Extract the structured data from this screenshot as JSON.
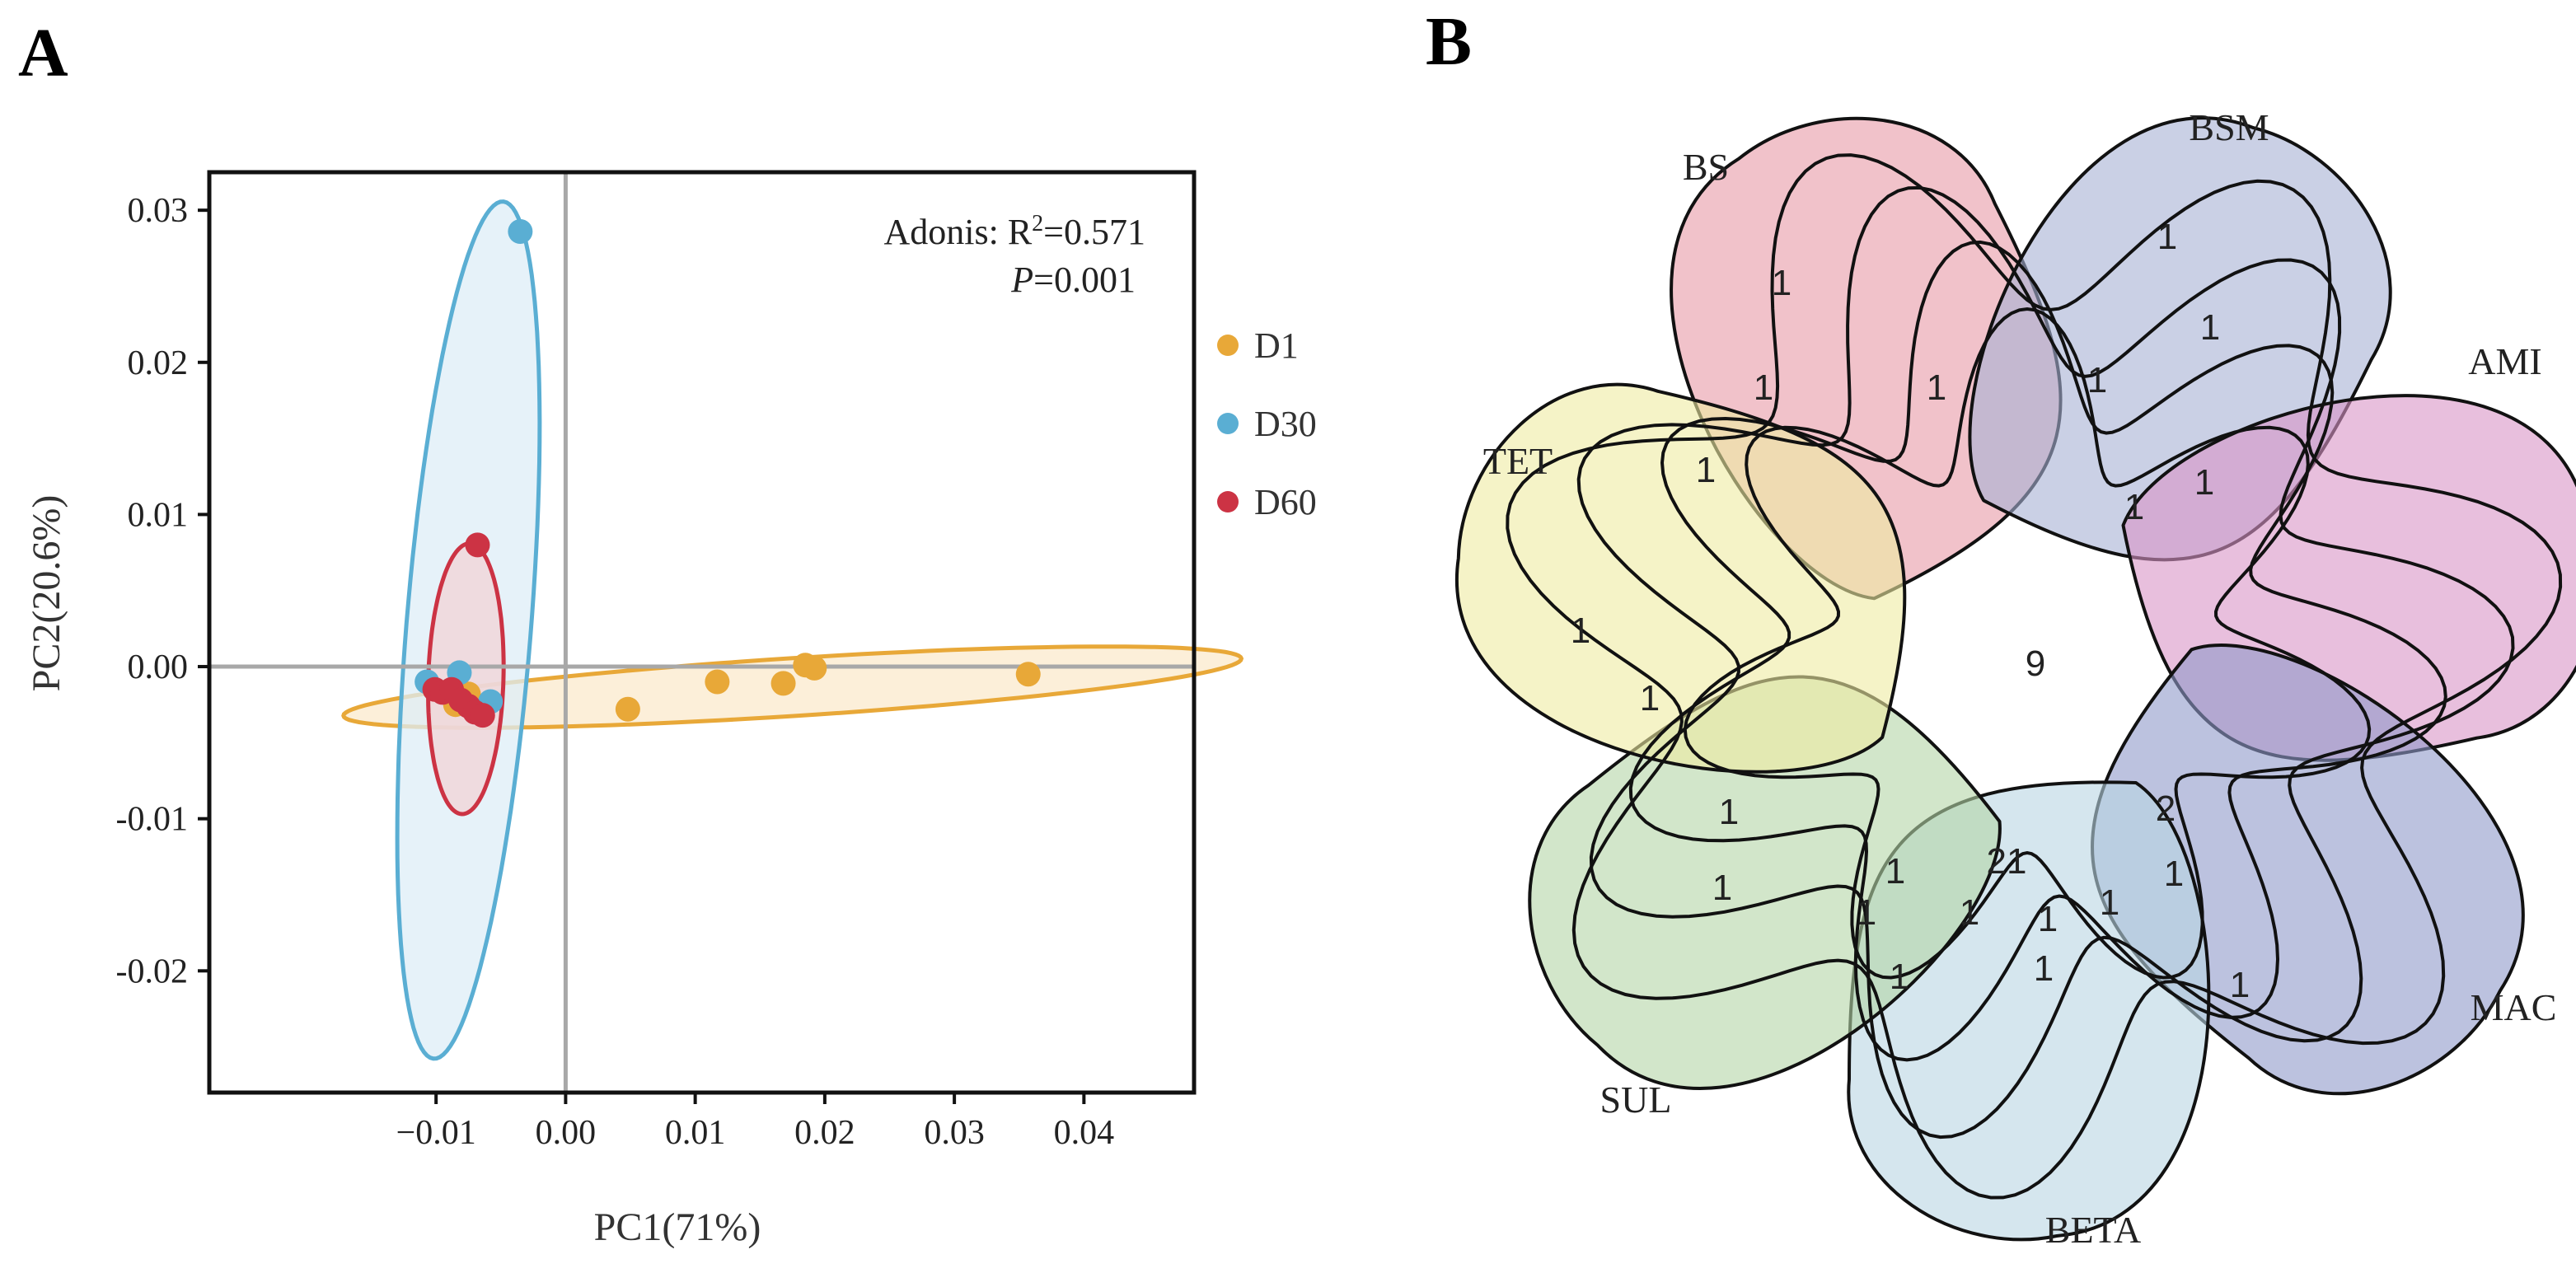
{
  "panels": {
    "a_letter": "A",
    "b_letter": "B"
  },
  "chart_data": [
    {
      "type": "scatter",
      "title": "",
      "xlabel": "PC1(71%)",
      "ylabel": "PC2(20.6%)",
      "xlim": [
        -0.0275,
        0.0485
      ],
      "ylim": [
        -0.028,
        0.0325
      ],
      "xticks": [
        -0.01,
        0.0,
        0.01,
        0.02,
        0.03,
        0.04
      ],
      "xtick_labels": [
        "−0.01",
        "0.00",
        "0.01",
        "0.02",
        "0.03",
        "0.04"
      ],
      "yticks": [
        -0.02,
        -0.01,
        0.0,
        0.01,
        0.02,
        0.03
      ],
      "ytick_labels": [
        "-0.02",
        "-0.01",
        "0.00",
        "0.01",
        "0.02",
        "0.03"
      ],
      "reference_lines": {
        "x": 0,
        "y": 0
      },
      "annotation": {
        "line1_prefix": "Adonis: R",
        "line1_sup": "2",
        "line1_suffix": "=0.571",
        "line2_italic": "P",
        "line2_suffix": "=0.001"
      },
      "legend_position": "right",
      "series": [
        {
          "name": "D1",
          "color": "#e8a838",
          "fill": "#fbe9cc",
          "ellipse": {
            "cx": 0.0175,
            "cy": -0.00135,
            "rx": 0.0347,
            "ry": 0.0019,
            "angle_deg": 3.1
          },
          "points": [
            [
              0.0357,
              -0.0005
            ],
            [
              0.0192,
              -0.0001
            ],
            [
              0.0185,
              0.0001
            ],
            [
              0.0168,
              -0.0011
            ],
            [
              0.0117,
              -0.001
            ],
            [
              0.0048,
              -0.0028
            ],
            [
              -0.0085,
              -0.0025
            ],
            [
              -0.0075,
              -0.0018
            ]
          ]
        },
        {
          "name": "D30",
          "color": "#5aaed3",
          "fill": "#ddeef7",
          "ellipse": {
            "cx": -0.0075,
            "cy": 0.0024,
            "rx": 0.0283,
            "ry": 0.0048,
            "angle_deg": 84.5
          },
          "points": [
            [
              -0.0035,
              0.0286
            ],
            [
              -0.0082,
              -0.0004
            ],
            [
              -0.0107,
              -0.001
            ],
            [
              -0.0058,
              -0.0023
            ]
          ]
        },
        {
          "name": "D60",
          "color": "#cc3344",
          "fill": "#f1d3d6",
          "ellipse": {
            "cx": -0.0077,
            "cy": -0.0008,
            "rx": 0.0089,
            "ry": 0.0029,
            "angle_deg": 88.0
          },
          "points": [
            [
              -0.0068,
              0.008
            ],
            [
              -0.0101,
              -0.0015
            ],
            [
              -0.0095,
              -0.0017
            ],
            [
              -0.0088,
              -0.0015
            ],
            [
              -0.0081,
              -0.0022
            ],
            [
              -0.0075,
              -0.0026
            ],
            [
              -0.007,
              -0.003
            ],
            [
              -0.0064,
              -0.0032
            ]
          ]
        }
      ]
    },
    {
      "type": "venn",
      "title": "",
      "sets": [
        {
          "name": "BS",
          "fill": "#e79aa6"
        },
        {
          "name": "BSM",
          "fill": "#a7b1d4"
        },
        {
          "name": "AMI",
          "fill": "#d994c7"
        },
        {
          "name": "MAC",
          "fill": "#8f99c9"
        },
        {
          "name": "BETA",
          "fill": "#b9d6e3"
        },
        {
          "name": "SUL",
          "fill": "#b4d5a6"
        },
        {
          "name": "TET",
          "fill": "#eeeba2"
        }
      ],
      "region_counts": [
        "1",
        "1",
        "1",
        "1",
        "1",
        "1",
        "1",
        "1",
        "1",
        "1",
        "1",
        "9",
        "1",
        "1",
        "1",
        "1",
        "2",
        "1",
        "21",
        "1",
        "1",
        "1",
        "1",
        "1",
        "1"
      ]
    }
  ]
}
